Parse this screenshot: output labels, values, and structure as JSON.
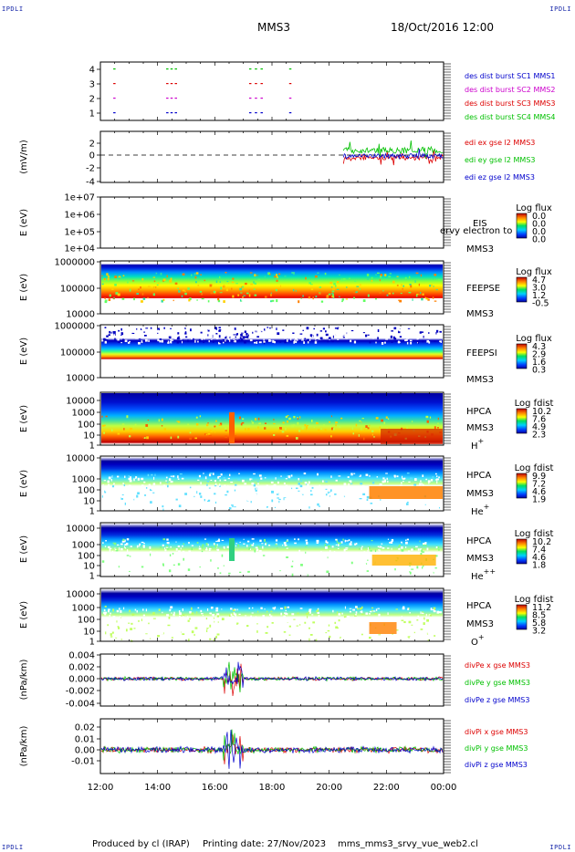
{
  "header": {
    "spacecraft": "MMS3",
    "datetime": "18/Oct/2016 12:00",
    "corner_tl": "IPDLI",
    "corner_tr": "IPDLI",
    "corner_bl": "IPDLI",
    "corner_br": "IPDLI"
  },
  "footer": {
    "producer": "Produced by cl (IRAP)",
    "printing": "Printing date: 27/Nov/2023",
    "file": "mms_mms3_srvy_vue_web2.cl"
  },
  "time_axis": {
    "ticks": [
      "12:00",
      "14:00",
      "16:00",
      "18:00",
      "20:00",
      "22:00",
      "00:00"
    ]
  },
  "colors": {
    "red": "#dd0000",
    "green": "#00c000",
    "blue": "#0000cc",
    "magenta": "#cc00cc",
    "series_labels": "blue"
  },
  "chart_data": [
    {
      "type": "scatter",
      "panel": "burst",
      "yticks": [
        "4",
        "3",
        "2",
        "1"
      ],
      "x_range_hours": [
        12,
        24
      ],
      "series": [
        {
          "name": "des dist burst SC1 MMS1",
          "color": "#0000cc",
          "y": 4,
          "x_hours": [
            12.45,
            14.3,
            14.45,
            14.6,
            17.2,
            17.4,
            17.6,
            18.6
          ]
        },
        {
          "name": "des dist burst SC2 MMS2",
          "color": "#cc00cc",
          "y": 3,
          "x_hours": [
            12.45,
            14.3,
            14.45,
            14.6,
            17.2,
            17.4,
            17.6,
            18.6
          ]
        },
        {
          "name": "des dist burst SC3 MMS3",
          "color": "#dd0000",
          "y": 2,
          "x_hours": [
            12.45,
            14.3,
            14.45,
            14.6,
            17.2,
            17.4,
            17.6,
            18.6
          ]
        },
        {
          "name": "des dist burst SC4 MMS4",
          "color": "#00c000",
          "y": 1,
          "x_hours": [
            12.45,
            14.3,
            14.45,
            14.6,
            17.2,
            17.4,
            17.6,
            18.6
          ]
        }
      ]
    },
    {
      "type": "line",
      "panel": "edi",
      "ylabel": "(mV/m)",
      "yticks": [
        "2",
        "0",
        "-2",
        "-4"
      ],
      "ylim": [
        -4,
        3
      ],
      "x_range_hours": [
        12,
        24
      ],
      "data_start_hour": 20.5,
      "series": [
        {
          "name": "edi ex gse l2 MMS3",
          "color": "#dd0000"
        },
        {
          "name": "edi ey gse l2 MMS3",
          "color": "#00c000"
        },
        {
          "name": "edi ez gse l2 MMS3",
          "color": "#0000cc"
        }
      ]
    },
    {
      "type": "heatmap",
      "panel": "eis",
      "ylabel": "E (eV)",
      "yticks": [
        "1e+07",
        "1e+06",
        "1e+05",
        "1e+04"
      ],
      "instrument": "EIS",
      "spacecraft": "MMS3",
      "overlay": "ervy electron to",
      "colorbar_title": "Log flux",
      "colorbar_values": [
        "0.0",
        "0.0",
        "0.0",
        "0.0"
      ]
    },
    {
      "type": "heatmap",
      "panel": "feepse",
      "ylabel": "E (eV)",
      "yticks": [
        "1000000",
        "100000",
        "10000"
      ],
      "instrument": "FEEPSE",
      "spacecraft": "MMS3",
      "colorbar_title": "Log flux",
      "colorbar_values": [
        "4.7",
        "3.0",
        "1.2",
        "-0.5"
      ]
    },
    {
      "type": "heatmap",
      "panel": "feepsi",
      "ylabel": "E (eV)",
      "yticks": [
        "1000000",
        "100000",
        "10000"
      ],
      "instrument": "FEEPSI",
      "spacecraft": "MMS3",
      "colorbar_title": "Log flux",
      "colorbar_values": [
        "4.3",
        "2.9",
        "1.6",
        "0.3"
      ]
    },
    {
      "type": "heatmap",
      "panel": "hpca-h",
      "ylabel": "E (eV)",
      "yticks": [
        "10000",
        "1000",
        "100",
        "10",
        "1"
      ],
      "instrument": "HPCA",
      "spacecraft": "MMS3",
      "species": "H",
      "charge": "+",
      "colorbar_title": "Log fdist",
      "colorbar_values": [
        "10.2",
        "7.6",
        "4.9",
        "2.3"
      ]
    },
    {
      "type": "heatmap",
      "panel": "hpca-he",
      "ylabel": "E (eV)",
      "yticks": [
        "10000",
        "1000",
        "100",
        "10",
        "1"
      ],
      "instrument": "HPCA",
      "spacecraft": "MMS3",
      "species": "He",
      "charge": "+",
      "colorbar_title": "Log fdist",
      "colorbar_values": [
        "9.9",
        "7.2",
        "4.6",
        "1.9"
      ]
    },
    {
      "type": "heatmap",
      "panel": "hpca-he2",
      "ylabel": "E (eV)",
      "yticks": [
        "10000",
        "1000",
        "100",
        "10",
        "1"
      ],
      "instrument": "HPCA",
      "spacecraft": "MMS3",
      "species": "He",
      "charge": "++",
      "colorbar_title": "Log fdist",
      "colorbar_values": [
        "10.2",
        "7.4",
        "4.6",
        "1.8"
      ]
    },
    {
      "type": "heatmap",
      "panel": "hpca-o",
      "ylabel": "E (eV)",
      "yticks": [
        "10000",
        "1000",
        "100",
        "10",
        "1"
      ],
      "instrument": "HPCA",
      "spacecraft": "MMS3",
      "species": "O",
      "charge": "+",
      "colorbar_title": "Log fdist",
      "colorbar_values": [
        "11.2",
        "8.5",
        "5.8",
        "3.2"
      ]
    },
    {
      "type": "line",
      "panel": "divpe",
      "ylabel": "(nPa/km)",
      "yticks": [
        "0.004",
        "0.002",
        "0.000",
        "-0.002",
        "-0.004"
      ],
      "ylim": [
        -0.005,
        0.005
      ],
      "series": [
        {
          "name": "divPe x gse MMS3",
          "color": "#dd0000"
        },
        {
          "name": "divPe y gse MMS3",
          "color": "#00c000"
        },
        {
          "name": "divPe z gse MMS3",
          "color": "#0000cc"
        }
      ]
    },
    {
      "type": "line",
      "panel": "divpi",
      "ylabel": "(nPa/km)",
      "yticks": [
        "0.02",
        "0.01",
        "0.00",
        "-0.01"
      ],
      "ylim": [
        -0.017,
        0.027
      ],
      "series": [
        {
          "name": "divPi x gse MMS3",
          "color": "#dd0000"
        },
        {
          "name": "divPi y gse MMS3",
          "color": "#00c000"
        },
        {
          "name": "divPi z gse MMS3",
          "color": "#0000cc"
        }
      ]
    }
  ]
}
